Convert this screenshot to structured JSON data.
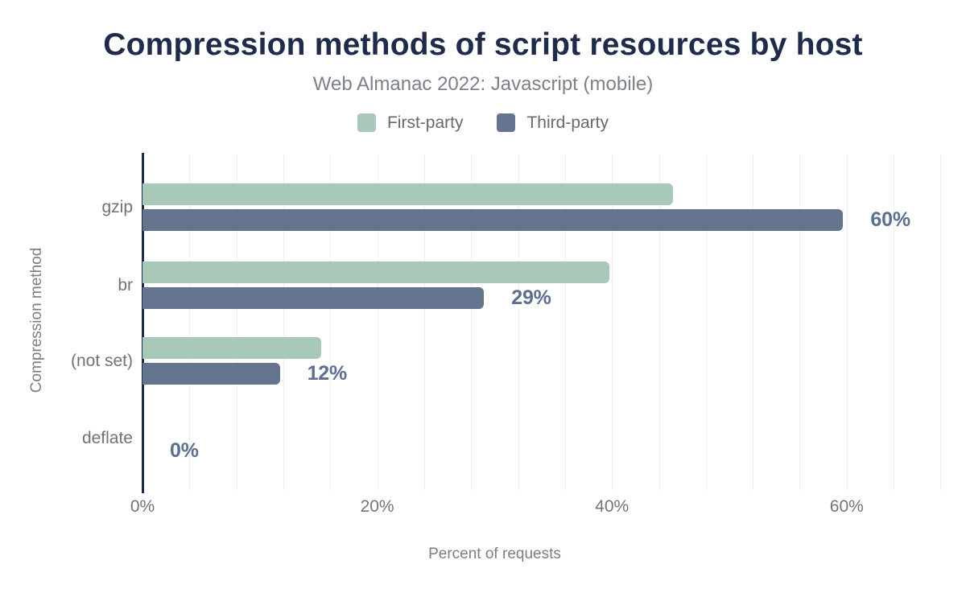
{
  "title": "Compression methods of script resources by host",
  "subtitle": "Web Almanac 2022: Javascript (mobile)",
  "colors": {
    "title_text": "#1f2b4a",
    "subtitle_text": "#7c8188",
    "first_party": "#a9c9b8",
    "third_party": "#64748f",
    "value_label_text": "#5b7090",
    "axis_line": "#1b2b4a",
    "gridline": "#f0f0f1",
    "tick_text": "#70757d"
  },
  "chart_data": {
    "type": "bar",
    "orientation": "horizontal",
    "title": "Compression methods of script resources by host",
    "subtitle": "Web Almanac 2022: Javascript (mobile)",
    "categories": [
      "gzip",
      "br",
      "(not set)",
      "deflate"
    ],
    "series": [
      {
        "name": "First-party",
        "color": "#a9c9b8",
        "values": [
          45.2,
          39.8,
          15.2,
          0
        ]
      },
      {
        "name": "Third-party",
        "color": "#64748f",
        "values": [
          59.7,
          29.1,
          11.7,
          0
        ]
      }
    ],
    "data_labels": [
      "60%",
      "29%",
      "12%",
      "0%"
    ],
    "data_labels_series": "Third-party",
    "xlabel": "Percent of requests",
    "ylabel": "Compression method",
    "x_ticks": [
      "0%",
      "20%",
      "40%",
      "60%"
    ],
    "x_tick_values": [
      0,
      20,
      40,
      60
    ],
    "xlim": [
      0,
      69
    ],
    "grid": "vertical, minor gridlines every 4%",
    "legend_position": "top"
  }
}
